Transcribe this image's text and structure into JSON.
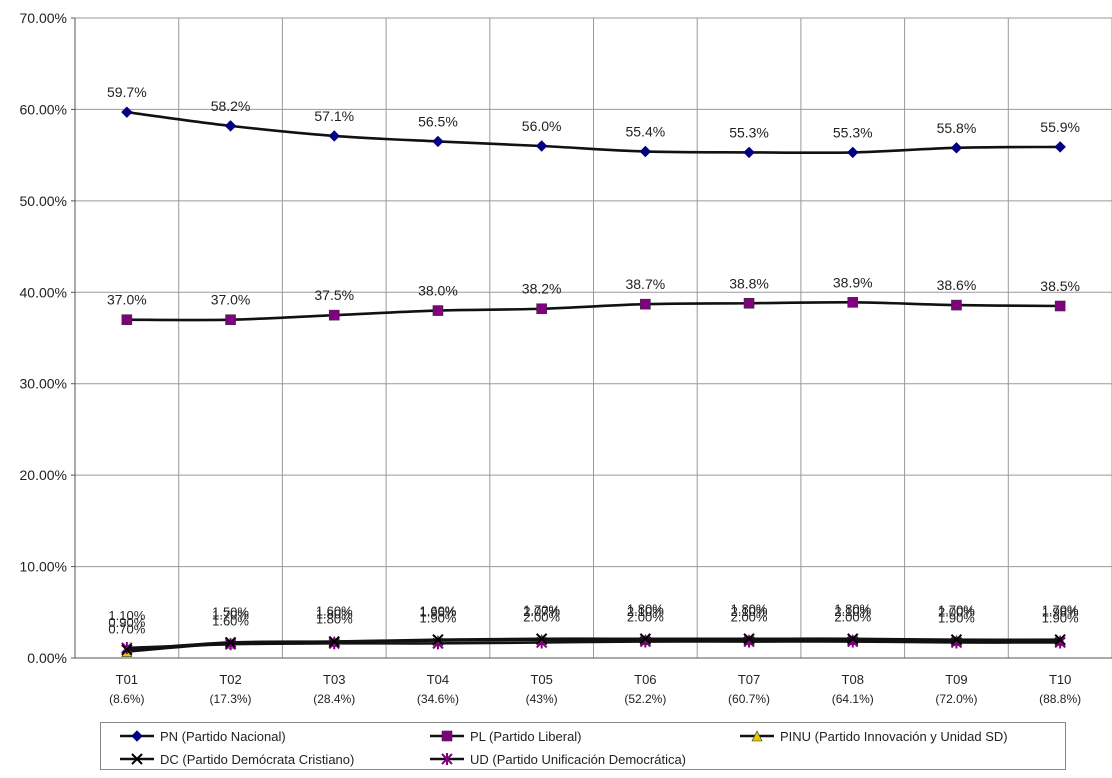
{
  "chart_data": {
    "type": "line",
    "categories": [
      "T01\n(8.6%)",
      "T02\n(17.3%)",
      "T03\n(28.4%)",
      "T04\n(34.6%)",
      "T05\n(43%)",
      "T06\n(52.2%)",
      "T07\n(60.7%)",
      "T08\n(64.1%)",
      "T09\n(72.0%)",
      "T10\n(88.8%)"
    ],
    "category_labels": [
      {
        "top": "T01",
        "bottom": "(8.6%)"
      },
      {
        "top": "T02",
        "bottom": "(17.3%)"
      },
      {
        "top": "T03",
        "bottom": "(28.4%)"
      },
      {
        "top": "T04",
        "bottom": "(34.6%)"
      },
      {
        "top": "T05",
        "bottom": "(43%)"
      },
      {
        "top": "T06",
        "bottom": "(52.2%)"
      },
      {
        "top": "T07",
        "bottom": "(60.7%)"
      },
      {
        "top": "T08",
        "bottom": "(64.1%)"
      },
      {
        "top": "T09",
        "bottom": "(72.0%)"
      },
      {
        "top": "T10",
        "bottom": "(88.8%)"
      }
    ],
    "ylim": [
      0,
      70
    ],
    "y_ticks": [
      "0.00%",
      "10.00%",
      "20.00%",
      "30.00%",
      "40.00%",
      "50.00%",
      "60.00%",
      "70.00%"
    ],
    "grid": true,
    "legend_position": "bottom",
    "series": [
      {
        "name": "PN (Partido Nacional)",
        "color": "#000080",
        "marker": "diamond",
        "values": [
          59.7,
          58.2,
          57.1,
          56.5,
          56.0,
          55.4,
          55.3,
          55.3,
          55.8,
          55.9
        ],
        "labels": [
          "59.7%",
          "58.2%",
          "57.1%",
          "56.5%",
          "56.0%",
          "55.4%",
          "55.3%",
          "55.3%",
          "55.8%",
          "55.9%"
        ]
      },
      {
        "name": "PL (Partido Liberal)",
        "color": "#800080",
        "marker": "square",
        "values": [
          37.0,
          37.0,
          37.5,
          38.0,
          38.2,
          38.7,
          38.8,
          38.9,
          38.6,
          38.5
        ],
        "labels": [
          "37.0%",
          "37.0%",
          "37.5%",
          "38.0%",
          "38.2%",
          "38.7%",
          "38.8%",
          "38.9%",
          "38.6%",
          "38.5%"
        ]
      },
      {
        "name": "PINU (Partido Innovación y Unidad SD)",
        "color": "#e6c800",
        "marker": "triangle",
        "values": [
          0.7,
          1.6,
          1.8,
          1.9,
          2.0,
          2.0,
          2.0,
          2.0,
          1.9,
          1.9
        ],
        "labels": [
          "0.70%",
          "1.60%",
          "1.80%",
          "1.90%",
          "2.00%",
          "2.00%",
          "2.00%",
          "2.00%",
          "1.90%",
          "1.90%"
        ]
      },
      {
        "name": "DC (Partido Demócrata Cristiano)",
        "color": "#000000",
        "marker": "x",
        "values": [
          0.9,
          1.7,
          1.8,
          2.0,
          2.1,
          2.1,
          2.1,
          2.1,
          2.0,
          2.0
        ],
        "labels": [
          "0.90%",
          "1.70%",
          "1.80%",
          "1.96%",
          "2.07%",
          "2.10%",
          "2.10%",
          "2.10%",
          "2.00%",
          "1.98%"
        ]
      },
      {
        "name": "UD (Partido Unificación Democrática)",
        "color": "#800080",
        "marker": "star",
        "values": [
          1.1,
          1.5,
          1.6,
          1.6,
          1.7,
          1.8,
          1.8,
          1.8,
          1.7,
          1.7
        ],
        "labels": [
          "1.10%",
          "1.50%",
          "1.60%",
          "1.60%",
          "1.70%",
          "1.80%",
          "1.80%",
          "1.80%",
          "1.70%",
          "1.70%"
        ]
      }
    ]
  }
}
